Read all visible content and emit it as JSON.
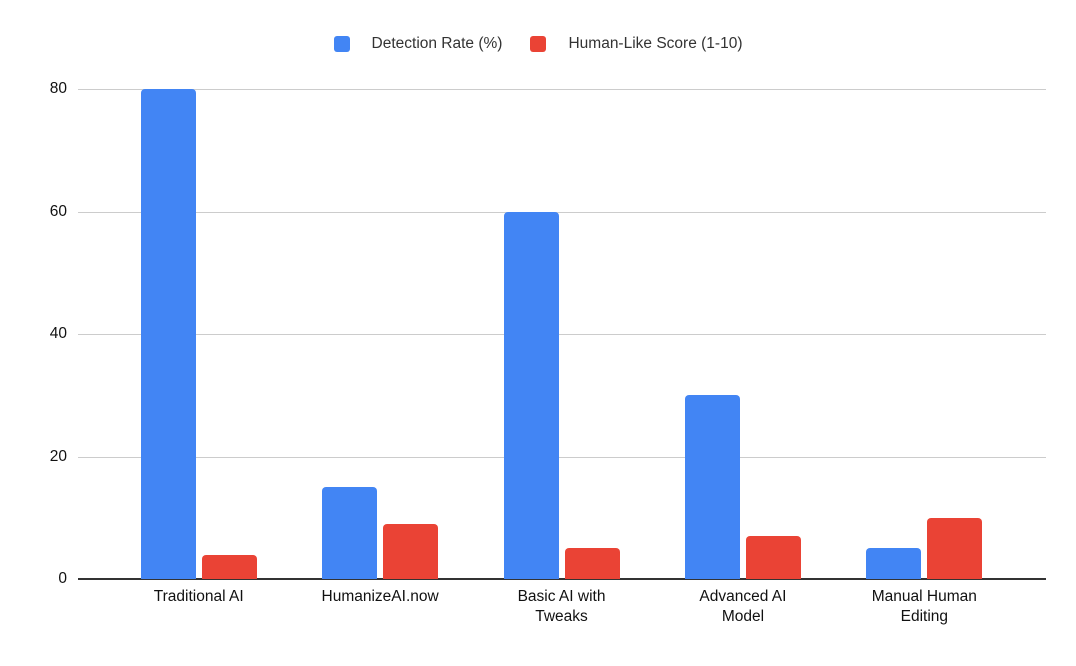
{
  "chart_data": {
    "type": "bar",
    "title": "",
    "categories": [
      "Traditional AI",
      "HumanizeAI.now",
      "Basic AI with Tweaks",
      "Advanced AI Model",
      "Manual Human Editing"
    ],
    "series": [
      {
        "name": "Detection Rate (%)",
        "color": "#4285F4",
        "values": [
          80,
          15,
          60,
          30,
          5
        ]
      },
      {
        "name": "Human-Like Score (1-10)",
        "color": "#EA4335",
        "values": [
          4,
          9,
          5,
          7,
          10
        ]
      }
    ],
    "ylim": [
      0,
      80
    ],
    "yticks": [
      0,
      20,
      40,
      60,
      80
    ],
    "grid": true,
    "legend_position": "top",
    "background_color": "#ffffff",
    "gridline_color": "#cccccc",
    "axis_line_color": "#333333",
    "axis_label_color": "#111111",
    "legend_text_color": "#333333"
  }
}
